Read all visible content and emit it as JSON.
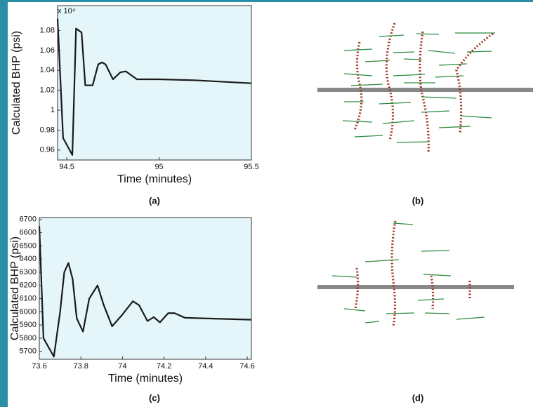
{
  "chart_data": [
    {
      "type": "line",
      "ylabel": "Calculated BHP (psi)",
      "xlabel": "Time (minutes)",
      "annotation": "x 10⁴",
      "caption": "(a)",
      "x": [
        94.45,
        94.48,
        94.53,
        94.55,
        94.58,
        94.6,
        94.64,
        94.67,
        94.69,
        94.71,
        94.75,
        94.79,
        94.82,
        94.85,
        94.88,
        94.95,
        95.0,
        95.2,
        95.5
      ],
      "series": [
        {
          "color": "#1a1a1a",
          "values": [
            1.092,
            0.972,
            0.955,
            1.082,
            1.078,
            1.025,
            1.025,
            1.046,
            1.048,
            1.046,
            1.031,
            1.038,
            1.039,
            1.035,
            1.031,
            1.031,
            1.031,
            1.03,
            1.027
          ]
        }
      ],
      "xlim": [
        94.45,
        95.5
      ],
      "ylim": [
        0.95,
        1.105
      ],
      "xticks": [
        94.5,
        95,
        95.5
      ],
      "yticks": [
        0.96,
        0.98,
        1,
        1.02,
        1.04,
        1.06,
        1.08
      ],
      "background": "#e4f6f9"
    },
    {
      "type": "line",
      "ylabel": "Calculated BHP (psi)",
      "xlabel": "Time (minutes)",
      "caption": "(c)",
      "x": [
        73.6,
        73.62,
        73.67,
        73.7,
        73.72,
        73.74,
        73.76,
        73.78,
        73.81,
        73.84,
        73.88,
        73.91,
        73.95,
        74.0,
        74.05,
        74.08,
        74.12,
        74.15,
        74.18,
        74.22,
        74.25,
        74.3,
        74.4,
        74.62
      ],
      "series": [
        {
          "color": "#1a1a1a",
          "values": [
            6650,
            5800,
            5660,
            6000,
            6300,
            6370,
            6250,
            5950,
            5850,
            6100,
            6200,
            6050,
            5890,
            5980,
            6080,
            6050,
            5930,
            5960,
            5920,
            5990,
            5990,
            5955,
            5950,
            5940
          ]
        }
      ],
      "xlim": [
        73.6,
        74.62
      ],
      "ylim": [
        5640,
        6715
      ],
      "xticks": [
        73.6,
        73.8,
        74,
        74.2,
        74.4,
        74.6
      ],
      "yticks": [
        5700,
        5800,
        5900,
        6000,
        6100,
        6200,
        6300,
        6400,
        6500,
        6600,
        6700
      ],
      "background": "#e4f6f9"
    }
  ],
  "diagrams": [
    {
      "caption": "(b)"
    },
    {
      "caption": "(d)"
    }
  ]
}
